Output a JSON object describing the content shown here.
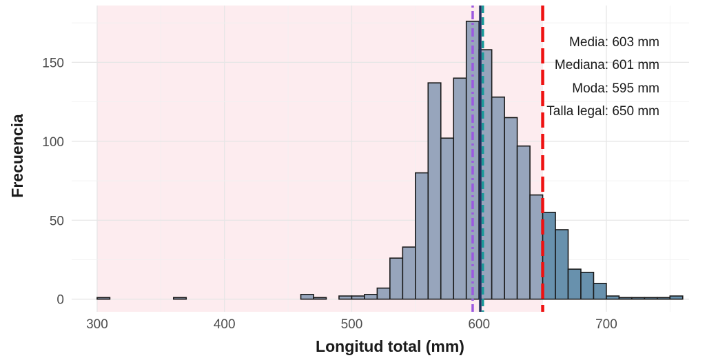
{
  "chart_data": {
    "type": "bar",
    "xlabel": "Longitud total (mm)",
    "ylabel": "Frecuencia",
    "xlim": [
      280,
      765
    ],
    "ylim": [
      -8,
      186
    ],
    "x_ticks": [
      "300",
      "400",
      "500",
      "600",
      "700"
    ],
    "y_ticks": [
      "0",
      "50",
      "100",
      "150"
    ],
    "grid": true,
    "shaded_region": {
      "from": 300,
      "to": 650,
      "color": "#fdecef"
    },
    "bin_width": 10,
    "bins": [
      {
        "start": 300,
        "count": 1
      },
      {
        "start": 310,
        "count": 0
      },
      {
        "start": 320,
        "count": 0
      },
      {
        "start": 330,
        "count": 0
      },
      {
        "start": 340,
        "count": 0
      },
      {
        "start": 350,
        "count": 0
      },
      {
        "start": 360,
        "count": 1
      },
      {
        "start": 370,
        "count": 0
      },
      {
        "start": 380,
        "count": 0
      },
      {
        "start": 390,
        "count": 0
      },
      {
        "start": 400,
        "count": 0
      },
      {
        "start": 410,
        "count": 0
      },
      {
        "start": 420,
        "count": 0
      },
      {
        "start": 430,
        "count": 0
      },
      {
        "start": 440,
        "count": 0
      },
      {
        "start": 450,
        "count": 0
      },
      {
        "start": 460,
        "count": 3
      },
      {
        "start": 470,
        "count": 1
      },
      {
        "start": 480,
        "count": 0
      },
      {
        "start": 490,
        "count": 2
      },
      {
        "start": 500,
        "count": 2
      },
      {
        "start": 510,
        "count": 3
      },
      {
        "start": 520,
        "count": 7
      },
      {
        "start": 530,
        "count": 26
      },
      {
        "start": 540,
        "count": 33
      },
      {
        "start": 550,
        "count": 80
      },
      {
        "start": 560,
        "count": 137
      },
      {
        "start": 570,
        "count": 102
      },
      {
        "start": 580,
        "count": 140
      },
      {
        "start": 590,
        "count": 176
      },
      {
        "start": 600,
        "count": 158
      },
      {
        "start": 610,
        "count": 128
      },
      {
        "start": 620,
        "count": 115
      },
      {
        "start": 630,
        "count": 97
      },
      {
        "start": 640,
        "count": 66
      },
      {
        "start": 650,
        "count": 55
      },
      {
        "start": 660,
        "count": 44
      },
      {
        "start": 670,
        "count": 19
      },
      {
        "start": 680,
        "count": 17
      },
      {
        "start": 690,
        "count": 10
      },
      {
        "start": 700,
        "count": 2
      },
      {
        "start": 710,
        "count": 1
      },
      {
        "start": 720,
        "count": 1
      },
      {
        "start": 730,
        "count": 1
      },
      {
        "start": 740,
        "count": 1
      },
      {
        "start": 750,
        "count": 2
      }
    ],
    "bar_colors": {
      "below_legal": "#97a5bc",
      "above_legal": "#6891ad",
      "outline": "#1a1a1a"
    },
    "reference_lines": [
      {
        "name": "Moda",
        "value": 595,
        "color": "#9b59e0",
        "style": "dotdash"
      },
      {
        "name": "Mediana",
        "value": 601,
        "color": "#1f2d5c",
        "style": "solid"
      },
      {
        "name": "Media",
        "value": 603,
        "color": "#1a9a9a",
        "style": "dashed"
      },
      {
        "name": "Talla legal",
        "value": 650,
        "color": "#ee1111",
        "style": "longdash"
      }
    ],
    "annotations": [
      "Media: 603 mm",
      "Mediana: 601 mm",
      "Moda: 595 mm",
      "Talla legal: 650 mm"
    ]
  }
}
